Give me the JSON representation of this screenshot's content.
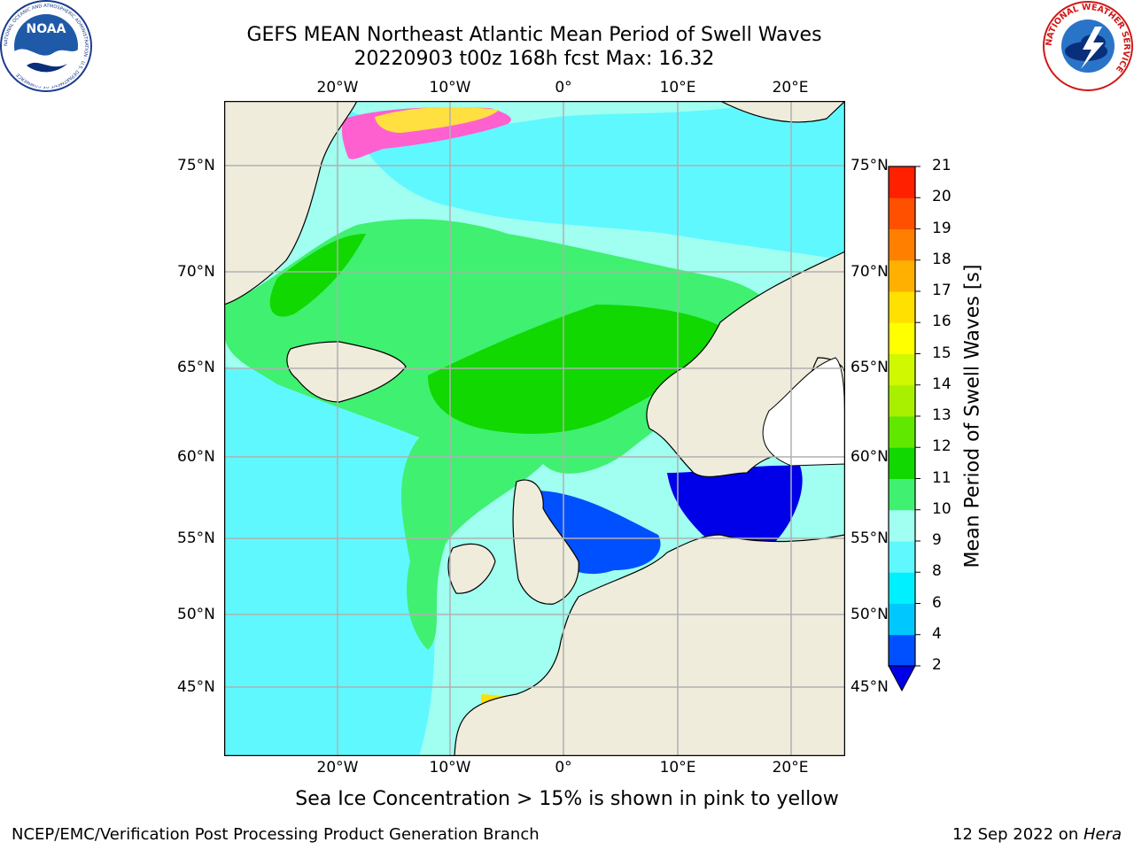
{
  "title": {
    "line1": "GEFS MEAN Northeast Atlantic Mean Period of Swell Waves",
    "line2": "20220903 t00z 168h fcst   Max: 16.32"
  },
  "map": {
    "lat_labels": [
      "75°N",
      "70°N",
      "65°N",
      "60°N",
      "55°N",
      "50°N",
      "45°N"
    ],
    "lon_labels": [
      "20°W",
      "10°W",
      "0°",
      "10°E",
      "20°E"
    ],
    "land_color": "#efecdc",
    "coast_color": "#000000",
    "grid_color": "#b0b0b0"
  },
  "colorbar": {
    "label": "Mean Period of Swell Waves [s]",
    "ticks": [
      "2",
      "4",
      "6",
      "8",
      "9",
      "10",
      "11",
      "12",
      "13",
      "14",
      "15",
      "16",
      "17",
      "18",
      "19",
      "20",
      "21"
    ],
    "colors": [
      "#0050ff",
      "#00c8ff",
      "#00f0ff",
      "#60f8ff",
      "#a0fff0",
      "#40f070",
      "#10d800",
      "#60e800",
      "#a8f000",
      "#d0f800",
      "#ffff00",
      "#ffe000",
      "#ffb000",
      "#ff8000",
      "#ff5000",
      "#ff2000",
      "#ff0000"
    ],
    "extend_color": "#0000e8"
  },
  "caption": "Sea Ice Concentration > 15% is shown in pink to yellow",
  "footer": {
    "left": "NCEP/EMC/Verification Post Processing Product Generation Branch",
    "right_prefix": "12 Sep 2022 on ",
    "right_host": "Hera"
  },
  "logos": {
    "noaa_text": "NOAA",
    "noaa_ring_text": "NATIONAL OCEANIC AND ATMOSPHERIC ADMINISTRATION · U.S. DEPARTMENT OF COMMERCE",
    "nws_ring_text": "NATIONAL WEATHER SERVICE"
  }
}
